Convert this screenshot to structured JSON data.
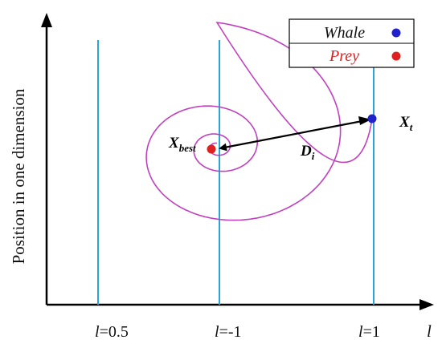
{
  "colors": {
    "spiral": "#c040c0",
    "lines": "#2aa6d6",
    "whale": "#2222cc",
    "prey": "#e02020",
    "axis": "#000000"
  },
  "axes": {
    "ylabel": "Position in one dimension",
    "xlabel": "l"
  },
  "ticks": [
    {
      "var": "l",
      "value": "=0.5"
    },
    {
      "var": "l",
      "value": "=-1"
    },
    {
      "var": "l",
      "value": "=1"
    }
  ],
  "legend": {
    "whale": "Whale",
    "prey": "Prey"
  },
  "labels": {
    "xbest_main": "X",
    "xbest_sub": "best",
    "xt_main": "X",
    "xt_sub": "t",
    "di_main": "D",
    "di_sub": "i"
  }
}
